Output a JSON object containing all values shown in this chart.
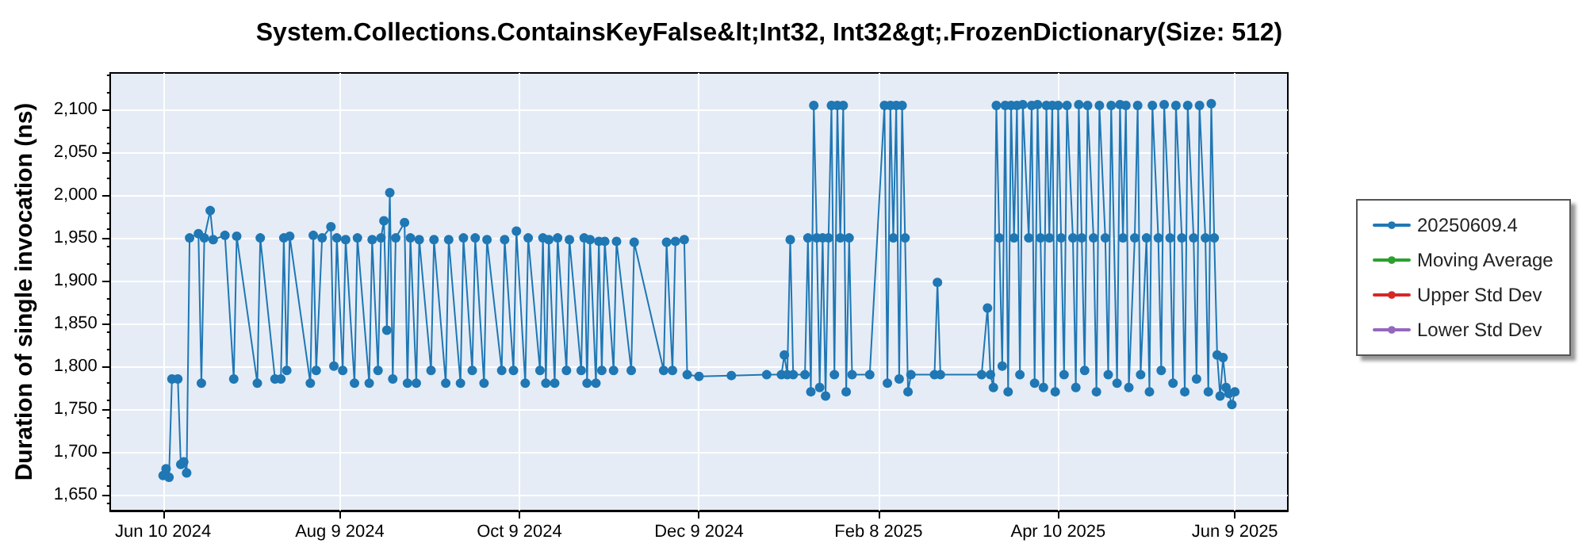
{
  "chart_data": {
    "type": "line",
    "title": "System.Collections.ContainsKeyFalse&lt;Int32, Int32&gt;.FrozenDictionary(Size: 512)",
    "ylabel": "Duration of single invocation (ns)",
    "xlim": [
      "2024-05-23",
      "2025-06-27"
    ],
    "xticks": [
      {
        "value": "2024-06-10",
        "label": "Jun 10 2024"
      },
      {
        "value": "2024-08-09",
        "label": "Aug 9 2024"
      },
      {
        "value": "2024-10-09",
        "label": "Oct 9 2024"
      },
      {
        "value": "2024-12-09",
        "label": "Dec 9 2024"
      },
      {
        "value": "2025-02-08",
        "label": "Feb 8 2025"
      },
      {
        "value": "2025-04-10",
        "label": "Apr 10 2025"
      },
      {
        "value": "2025-06-09",
        "label": "Jun 9 2025"
      }
    ],
    "ylim": [
      1631,
      2143
    ],
    "yticks": [
      {
        "value": 1650,
        "label": "1,650"
      },
      {
        "value": 1700,
        "label": "1,700"
      },
      {
        "value": 1750,
        "label": "1,750"
      },
      {
        "value": 1800,
        "label": "1,800"
      },
      {
        "value": 1850,
        "label": "1,850"
      },
      {
        "value": 1900,
        "label": "1,900"
      },
      {
        "value": 1950,
        "label": "1,950"
      },
      {
        "value": 2000,
        "label": "2,000"
      },
      {
        "value": 2050,
        "label": "2,050"
      },
      {
        "value": 2100,
        "label": "2,100"
      }
    ],
    "grid": true,
    "legend": "right",
    "marker": "circle",
    "line_style": "solid",
    "series": [
      {
        "name": "20250609.4",
        "color": "#1f77b4",
        "x": [
          "2024-06-10",
          "2024-06-11",
          "2024-06-12",
          "2024-06-13",
          "2024-06-15",
          "2024-06-16",
          "2024-06-17",
          "2024-06-18",
          "2024-06-19",
          "2024-06-22",
          "2024-06-23",
          "2024-06-24",
          "2024-06-26",
          "2024-06-27",
          "2024-07-01",
          "2024-07-04",
          "2024-07-05",
          "2024-07-12",
          "2024-07-13",
          "2024-07-18",
          "2024-07-20",
          "2024-07-21",
          "2024-07-22",
          "2024-07-23",
          "2024-07-30",
          "2024-07-31",
          "2024-08-01",
          "2024-08-03",
          "2024-08-06",
          "2024-08-07",
          "2024-08-08",
          "2024-08-10",
          "2024-08-11",
          "2024-08-14",
          "2024-08-15",
          "2024-08-19",
          "2024-08-20",
          "2024-08-22",
          "2024-08-23",
          "2024-08-24",
          "2024-08-25",
          "2024-08-26",
          "2024-08-27",
          "2024-08-28",
          "2024-08-31",
          "2024-09-01",
          "2024-09-02",
          "2024-09-04",
          "2024-09-05",
          "2024-09-09",
          "2024-09-10",
          "2024-09-14",
          "2024-09-15",
          "2024-09-19",
          "2024-09-20",
          "2024-09-23",
          "2024-09-24",
          "2024-09-27",
          "2024-09-28",
          "2024-10-03",
          "2024-10-04",
          "2024-10-07",
          "2024-10-08",
          "2024-10-11",
          "2024-10-12",
          "2024-10-16",
          "2024-10-17",
          "2024-10-18",
          "2024-10-19",
          "2024-10-21",
          "2024-10-22",
          "2024-10-25",
          "2024-10-26",
          "2024-10-30",
          "2024-10-31",
          "2024-11-01",
          "2024-11-02",
          "2024-11-04",
          "2024-11-05",
          "2024-11-06",
          "2024-11-07",
          "2024-11-10",
          "2024-11-11",
          "2024-11-16",
          "2024-11-17",
          "2024-11-27",
          "2024-11-28",
          "2024-11-30",
          "2024-12-01",
          "2024-12-04",
          "2024-12-05",
          "2024-12-09",
          "2024-12-20",
          "2025-01-01",
          "2025-01-06",
          "2025-01-07",
          "2025-01-08",
          "2025-01-09",
          "2025-01-10",
          "2025-01-14",
          "2025-01-15",
          "2025-01-16",
          "2025-01-17",
          "2025-01-18",
          "2025-01-19",
          "2025-01-20",
          "2025-01-21",
          "2025-01-22",
          "2025-01-23",
          "2025-01-24",
          "2025-01-25",
          "2025-01-26",
          "2025-01-27",
          "2025-01-28",
          "2025-01-29",
          "2025-01-30",
          "2025-02-05",
          "2025-02-10",
          "2025-02-11",
          "2025-02-12",
          "2025-02-13",
          "2025-02-14",
          "2025-02-15",
          "2025-02-16",
          "2025-02-17",
          "2025-02-18",
          "2025-02-19",
          "2025-02-27",
          "2025-02-28",
          "2025-03-01",
          "2025-03-15",
          "2025-03-17",
          "2025-03-18",
          "2025-03-19",
          "2025-03-20",
          "2025-03-21",
          "2025-03-22",
          "2025-03-23",
          "2025-03-24",
          "2025-03-25",
          "2025-03-26",
          "2025-03-27",
          "2025-03-28",
          "2025-03-29",
          "2025-03-31",
          "2025-04-01",
          "2025-04-02",
          "2025-04-03",
          "2025-04-04",
          "2025-04-05",
          "2025-04-06",
          "2025-04-07",
          "2025-04-08",
          "2025-04-09",
          "2025-04-10",
          "2025-04-11",
          "2025-04-12",
          "2025-04-13",
          "2025-04-15",
          "2025-04-16",
          "2025-04-17",
          "2025-04-18",
          "2025-04-19",
          "2025-04-20",
          "2025-04-22",
          "2025-04-23",
          "2025-04-24",
          "2025-04-26",
          "2025-04-27",
          "2025-04-28",
          "2025-04-30",
          "2025-05-01",
          "2025-05-02",
          "2025-05-03",
          "2025-05-04",
          "2025-05-06",
          "2025-05-07",
          "2025-05-08",
          "2025-05-10",
          "2025-05-11",
          "2025-05-12",
          "2025-05-14",
          "2025-05-15",
          "2025-05-16",
          "2025-05-18",
          "2025-05-19",
          "2025-05-20",
          "2025-05-22",
          "2025-05-23",
          "2025-05-24",
          "2025-05-26",
          "2025-05-27",
          "2025-05-28",
          "2025-05-30",
          "2025-05-31",
          "2025-06-01",
          "2025-06-02",
          "2025-06-03",
          "2025-06-04",
          "2025-06-05",
          "2025-06-06",
          "2025-06-07",
          "2025-06-08",
          "2025-06-09"
        ],
        "values": [
          1672,
          1680,
          1670,
          1785,
          1785,
          1685,
          1688,
          1675,
          1950,
          1955,
          1780,
          1950,
          1982,
          1948,
          1953,
          1785,
          1952,
          1780,
          1950,
          1785,
          1785,
          1950,
          1795,
          1952,
          1780,
          1953,
          1795,
          1950,
          1963,
          1800,
          1950,
          1795,
          1948,
          1780,
          1950,
          1780,
          1948,
          1795,
          1950,
          1970,
          1842,
          2003,
          1785,
          1950,
          1968,
          1780,
          1950,
          1780,
          1948,
          1795,
          1948,
          1780,
          1948,
          1780,
          1950,
          1795,
          1950,
          1780,
          1948,
          1795,
          1948,
          1795,
          1958,
          1780,
          1950,
          1795,
          1950,
          1780,
          1948,
          1780,
          1950,
          1795,
          1948,
          1795,
          1950,
          1780,
          1948,
          1780,
          1946,
          1795,
          1946,
          1795,
          1946,
          1795,
          1945,
          1795,
          1945,
          1795,
          1946,
          1948,
          1790,
          1788,
          1789,
          1790,
          1790,
          1813,
          1790,
          1948,
          1790,
          1790,
          1950,
          1770,
          2105,
          1950,
          1775,
          1950,
          1765,
          1950,
          2105,
          1790,
          2105,
          1950,
          2105,
          1770,
          1950,
          1790,
          1790,
          2105,
          1780,
          2105,
          1950,
          2105,
          1785,
          2105,
          1950,
          1770,
          1790,
          1790,
          1898,
          1790,
          1790,
          1868,
          1790,
          1775,
          2105,
          1950,
          1800,
          2105,
          1770,
          2105,
          1950,
          2105,
          1790,
          2106,
          1950,
          2105,
          1780,
          2106,
          1950,
          1775,
          2105,
          1950,
          2105,
          1770,
          2105,
          1950,
          1790,
          2105,
          1950,
          1775,
          2106,
          1950,
          1795,
          2105,
          1950,
          1770,
          2105,
          1950,
          1790,
          2105,
          1780,
          2106,
          1950,
          2105,
          1775,
          1950,
          2105,
          1790,
          1950,
          1770,
          2105,
          1950,
          1795,
          2106,
          1950,
          1780,
          2105,
          1950,
          1770,
          2105,
          1950,
          1785,
          2105,
          1950,
          1770,
          2107,
          1950,
          1813,
          1765,
          1810,
          1775,
          1768,
          1755,
          1770
        ]
      },
      {
        "name": "Moving Average",
        "color": "#2ca02c"
      },
      {
        "name": "Upper Std Dev",
        "color": "#d62728"
      },
      {
        "name": "Lower Std Dev",
        "color": "#9467bd"
      }
    ]
  }
}
